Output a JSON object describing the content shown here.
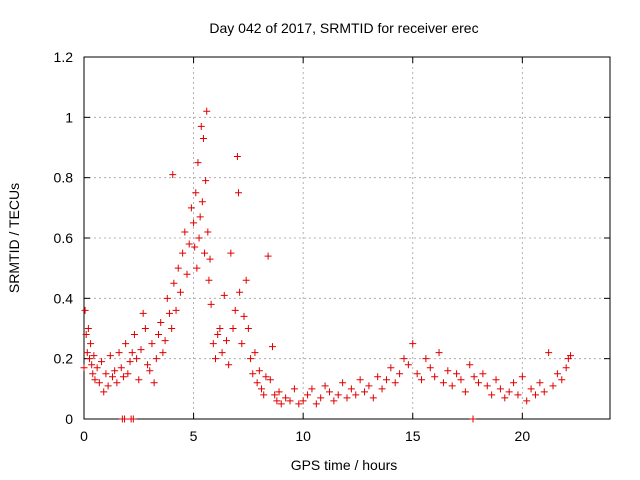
{
  "chart_data": {
    "type": "scatter",
    "title": "Day 042 of 2017, SRMTID for receiver erec",
    "xlabel": "GPS time / hours",
    "ylabel": "SRMTID / TECUs",
    "xlim": [
      0,
      24
    ],
    "ylim": [
      0,
      1.2
    ],
    "xticks": [
      0,
      5,
      10,
      15,
      20
    ],
    "yticks": [
      0,
      0.2,
      0.4,
      0.6,
      0.8,
      1,
      1.2
    ],
    "xtick_labels": [
      "0",
      "5",
      "10",
      "15",
      "20"
    ],
    "ytick_labels": [
      "0",
      "0.2",
      "0.4",
      "0.6",
      "0.8",
      "1",
      "1.2"
    ],
    "grid": true,
    "marker": "plus",
    "series": [
      {
        "name": "SRMTID",
        "color": "#e00000",
        "x": [
          0.0,
          0.05,
          0.1,
          0.15,
          0.2,
          0.25,
          0.3,
          0.35,
          0.4,
          0.45,
          0.5,
          0.6,
          0.7,
          0.8,
          0.9,
          1.0,
          1.1,
          1.2,
          1.3,
          1.4,
          1.5,
          1.6,
          1.7,
          1.8,
          1.9,
          2.0,
          2.1,
          2.2,
          2.3,
          2.4,
          2.5,
          2.6,
          2.7,
          2.8,
          2.9,
          3.0,
          3.1,
          3.2,
          3.3,
          3.4,
          3.5,
          3.6,
          3.7,
          3.8,
          3.9,
          4.0,
          4.05,
          4.1,
          4.2,
          4.3,
          4.4,
          4.5,
          4.6,
          4.7,
          4.8,
          4.9,
          5.0,
          5.05,
          5.1,
          5.15,
          5.2,
          5.25,
          5.3,
          5.35,
          5.4,
          5.45,
          5.5,
          5.55,
          5.6,
          5.65,
          5.7,
          5.75,
          5.8,
          5.9,
          6.0,
          6.1,
          6.2,
          6.3,
          6.4,
          6.5,
          6.6,
          6.7,
          6.8,
          6.9,
          7.0,
          7.05,
          7.1,
          7.2,
          7.3,
          7.4,
          7.5,
          7.6,
          7.7,
          7.8,
          7.9,
          8.0,
          8.1,
          8.2,
          8.3,
          8.4,
          8.5,
          8.6,
          8.7,
          8.8,
          8.9,
          9.0,
          9.2,
          9.4,
          9.6,
          9.8,
          10.0,
          10.2,
          10.4,
          10.6,
          10.8,
          11.0,
          11.2,
          11.4,
          11.6,
          11.8,
          12.0,
          12.2,
          12.4,
          12.6,
          12.8,
          13.0,
          13.2,
          13.4,
          13.6,
          13.8,
          14.0,
          14.2,
          14.4,
          14.6,
          14.8,
          15.0,
          15.2,
          15.4,
          15.6,
          15.8,
          16.0,
          16.2,
          16.4,
          16.6,
          16.8,
          17.0,
          17.2,
          17.4,
          17.6,
          17.8,
          18.0,
          18.2,
          18.4,
          18.6,
          18.8,
          19.0,
          19.2,
          19.4,
          19.6,
          19.8,
          20.0,
          20.2,
          20.4,
          20.6,
          20.8,
          21.0,
          21.2,
          21.4,
          21.6,
          21.8,
          22.0,
          22.1,
          22.2,
          1.75,
          1.85,
          2.15,
          2.25,
          17.75
        ],
        "y": [
          0.17,
          0.36,
          0.28,
          0.22,
          0.3,
          0.2,
          0.25,
          0.18,
          0.15,
          0.21,
          0.13,
          0.17,
          0.12,
          0.19,
          0.09,
          0.15,
          0.11,
          0.21,
          0.14,
          0.16,
          0.12,
          0.22,
          0.17,
          0.14,
          0.25,
          0.15,
          0.19,
          0.22,
          0.28,
          0.2,
          0.13,
          0.23,
          0.35,
          0.3,
          0.18,
          0.16,
          0.25,
          0.12,
          0.2,
          0.28,
          0.32,
          0.22,
          0.26,
          0.4,
          0.35,
          0.3,
          0.81,
          0.45,
          0.36,
          0.5,
          0.42,
          0.55,
          0.62,
          0.48,
          0.58,
          0.7,
          0.65,
          0.57,
          0.75,
          0.5,
          0.85,
          0.6,
          0.67,
          0.97,
          0.72,
          0.93,
          0.55,
          0.79,
          1.02,
          0.62,
          0.46,
          0.53,
          0.38,
          0.25,
          0.2,
          0.28,
          0.3,
          0.22,
          0.41,
          0.26,
          0.18,
          0.55,
          0.3,
          0.36,
          0.87,
          0.75,
          0.42,
          0.25,
          0.34,
          0.46,
          0.3,
          0.2,
          0.15,
          0.22,
          0.12,
          0.16,
          0.1,
          0.08,
          0.14,
          0.54,
          0.13,
          0.24,
          0.08,
          0.06,
          0.09,
          0.05,
          0.07,
          0.06,
          0.1,
          0.05,
          0.06,
          0.08,
          0.1,
          0.05,
          0.07,
          0.11,
          0.09,
          0.06,
          0.08,
          0.12,
          0.07,
          0.1,
          0.08,
          0.13,
          0.09,
          0.11,
          0.07,
          0.14,
          0.1,
          0.13,
          0.17,
          0.12,
          0.15,
          0.2,
          0.18,
          0.25,
          0.15,
          0.13,
          0.2,
          0.17,
          0.14,
          0.22,
          0.12,
          0.16,
          0.11,
          0.15,
          0.13,
          0.09,
          0.18,
          0.14,
          0.12,
          0.15,
          0.11,
          0.08,
          0.13,
          0.1,
          0.07,
          0.09,
          0.12,
          0.08,
          0.14,
          0.06,
          0.1,
          0.08,
          0.12,
          0.09,
          0.22,
          0.11,
          0.15,
          0.13,
          0.17,
          0.2,
          0.21,
          0.0,
          0.0,
          0.0,
          0.0,
          0.0
        ]
      }
    ]
  }
}
